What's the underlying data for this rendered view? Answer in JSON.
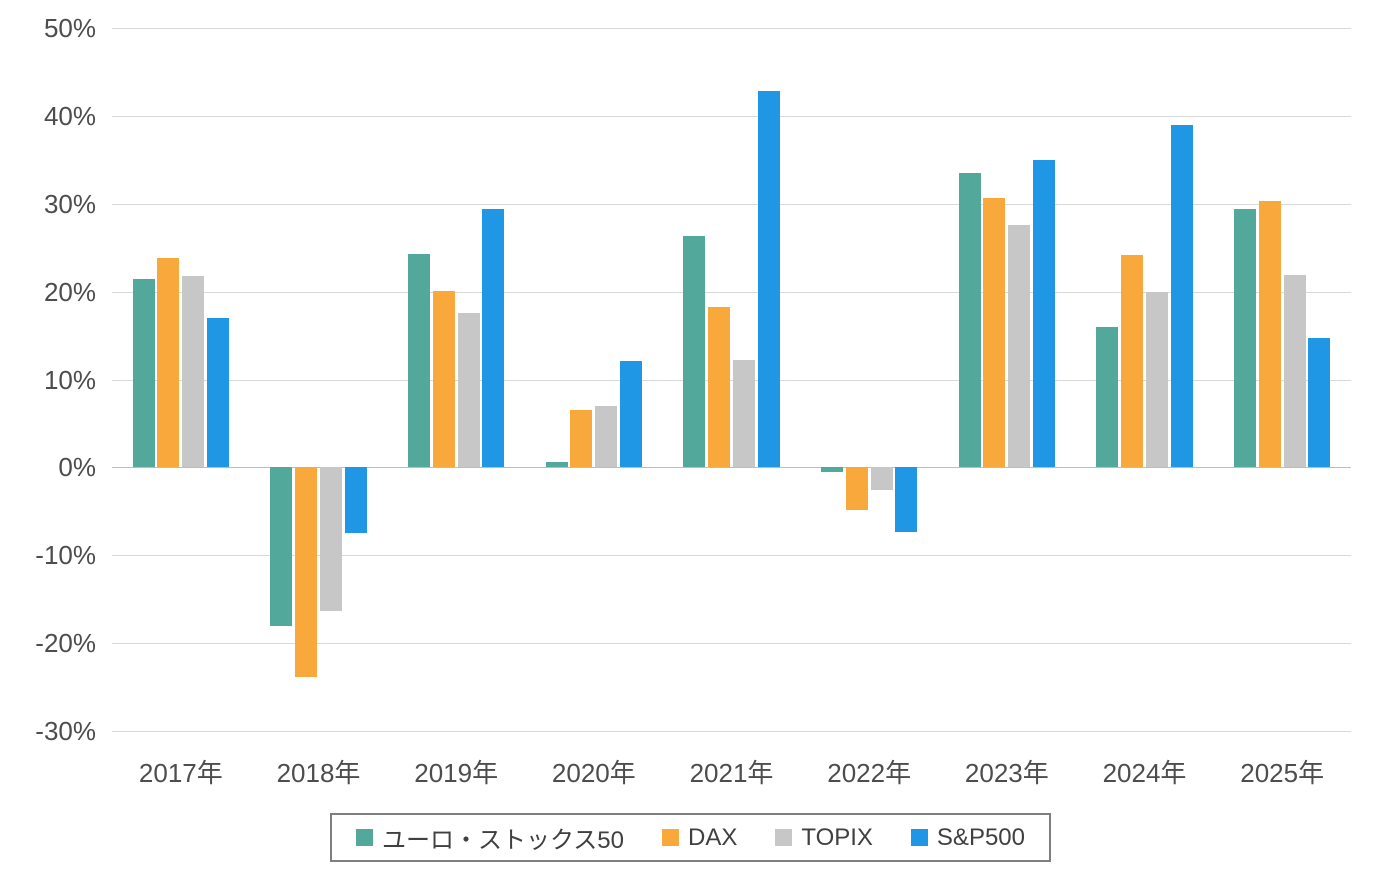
{
  "chart_data": {
    "type": "bar",
    "title": "",
    "xlabel": "",
    "ylabel": "",
    "unit": "%",
    "grid": true,
    "legend_position": "bottom",
    "ylim": [
      -30,
      50
    ],
    "categories": [
      "2017年",
      "2018年",
      "2019年",
      "2020年",
      "2021年",
      "2022年",
      "2023年",
      "2024年",
      "2025年"
    ],
    "yticks": [
      {
        "label": "50%",
        "value": 50
      },
      {
        "label": "40%",
        "value": 40
      },
      {
        "label": "30%",
        "value": 30
      },
      {
        "label": "20%",
        "value": 20
      },
      {
        "label": "10%",
        "value": 10
      },
      {
        "label": "0%",
        "value": 0
      },
      {
        "label": "-10%",
        "value": -10
      },
      {
        "label": "-20%",
        "value": -20
      },
      {
        "label": "-30%",
        "value": -30
      }
    ],
    "series": [
      {
        "name": "ユーロ・ストックス50",
        "color": "#52A89B",
        "values": [
          21.4,
          -18.1,
          24.3,
          0.6,
          26.3,
          -0.5,
          33.5,
          16.0,
          29.4
        ]
      },
      {
        "name": "DAX",
        "color": "#F9A93C",
        "values": [
          23.8,
          -23.9,
          20.1,
          6.5,
          18.3,
          -4.8,
          30.6,
          24.2,
          30.3
        ]
      },
      {
        "name": "TOPIX",
        "color": "#C7C7C7",
        "values": [
          21.8,
          -16.3,
          17.6,
          7.0,
          12.2,
          -2.6,
          27.6,
          20.0,
          21.9
        ]
      },
      {
        "name": "S&P500",
        "color": "#2097E4",
        "values": [
          17.0,
          -7.5,
          29.4,
          12.1,
          42.8,
          -7.3,
          35.0,
          39.0,
          14.7
        ]
      }
    ]
  }
}
